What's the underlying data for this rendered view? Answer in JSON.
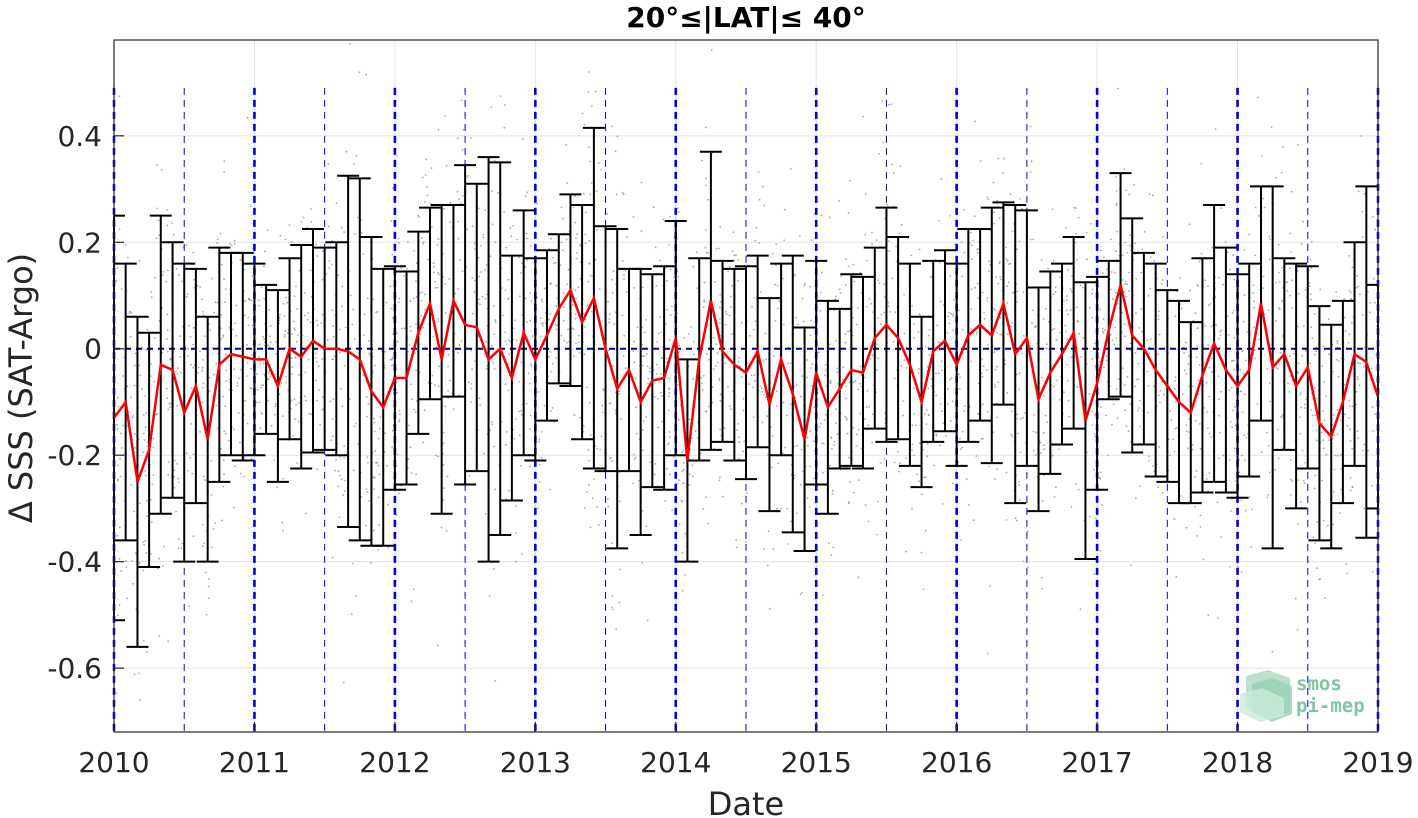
{
  "chart_data": {
    "type": "scatter",
    "title": "20°≤|LAT|≤ 40°",
    "xlabel": "Date",
    "ylabel": "Δ SSS (SAT-Argo)",
    "xlim": [
      2010,
      2019
    ],
    "ylim": [
      -0.72,
      0.58
    ],
    "xticks": [
      2010,
      2011,
      2012,
      2013,
      2014,
      2015,
      2016,
      2017,
      2018,
      2019
    ],
    "yticks": [
      -0.6,
      -0.4,
      -0.2,
      0,
      0.2,
      0.4
    ],
    "grid": true,
    "colors": {
      "mean_line": "#ff0000",
      "error_bars": "#000000",
      "scatter": "#8c8c8c",
      "vlines": "#0000dd",
      "zero_line": "#0000aa"
    },
    "series": [
      {
        "kind": "monthly_mean_with_std",
        "x": [
          2010.0,
          2010.083,
          2010.167,
          2010.25,
          2010.333,
          2010.417,
          2010.5,
          2010.583,
          2010.667,
          2010.75,
          2010.833,
          2010.917,
          2011.0,
          2011.083,
          2011.167,
          2011.25,
          2011.333,
          2011.417,
          2011.5,
          2011.583,
          2011.667,
          2011.75,
          2011.833,
          2011.917,
          2012.0,
          2012.083,
          2012.167,
          2012.25,
          2012.333,
          2012.417,
          2012.5,
          2012.583,
          2012.667,
          2012.75,
          2012.833,
          2012.917,
          2013.0,
          2013.083,
          2013.167,
          2013.25,
          2013.333,
          2013.417,
          2013.5,
          2013.583,
          2013.667,
          2013.75,
          2013.833,
          2013.917,
          2014.0,
          2014.083,
          2014.167,
          2014.25,
          2014.333,
          2014.417,
          2014.5,
          2014.583,
          2014.667,
          2014.75,
          2014.833,
          2014.917,
          2015.0,
          2015.083,
          2015.167,
          2015.25,
          2015.333,
          2015.417,
          2015.5,
          2015.583,
          2015.667,
          2015.75,
          2015.833,
          2015.917,
          2016.0,
          2016.083,
          2016.167,
          2016.25,
          2016.333,
          2016.417,
          2016.5,
          2016.583,
          2016.667,
          2016.75,
          2016.833,
          2016.917,
          2017.0,
          2017.083,
          2017.167,
          2017.25,
          2017.333,
          2017.417,
          2017.5,
          2017.583,
          2017.667,
          2017.75,
          2017.833,
          2017.917,
          2018.0,
          2018.083,
          2018.167,
          2018.25,
          2018.333,
          2018.417,
          2018.5,
          2018.583,
          2018.667,
          2018.75,
          2018.833,
          2018.917,
          2019.0
        ],
        "mean": [
          -0.13,
          -0.1,
          -0.25,
          -0.19,
          -0.03,
          -0.04,
          -0.12,
          -0.07,
          -0.17,
          -0.03,
          -0.01,
          -0.015,
          -0.02,
          -0.02,
          -0.07,
          0.0,
          -0.015,
          0.015,
          0.0,
          0.0,
          -0.005,
          -0.02,
          -0.08,
          -0.11,
          -0.055,
          -0.055,
          0.03,
          0.085,
          -0.02,
          0.09,
          0.045,
          0.04,
          -0.02,
          0.0,
          -0.055,
          0.03,
          -0.02,
          0.025,
          0.075,
          0.11,
          0.05,
          0.095,
          0.0,
          -0.075,
          -0.04,
          -0.1,
          -0.06,
          -0.055,
          0.02,
          -0.21,
          -0.02,
          0.09,
          -0.005,
          -0.03,
          -0.045,
          -0.005,
          -0.105,
          -0.02,
          -0.085,
          -0.17,
          -0.045,
          -0.11,
          -0.075,
          -0.04,
          -0.045,
          0.02,
          0.045,
          0.02,
          -0.03,
          -0.1,
          -0.005,
          0.015,
          -0.03,
          0.025,
          0.045,
          0.025,
          0.085,
          -0.01,
          0.02,
          -0.095,
          -0.045,
          -0.01,
          0.03,
          -0.135,
          -0.065,
          0.035,
          0.12,
          0.025,
          0.0,
          -0.04,
          -0.07,
          -0.1,
          -0.12,
          -0.05,
          0.01,
          -0.04,
          -0.07,
          -0.04,
          0.085,
          -0.035,
          -0.01,
          -0.07,
          -0.035,
          -0.14,
          -0.165,
          -0.1,
          -0.01,
          -0.025,
          -0.09
        ],
        "std": [
          0.38,
          0.26,
          0.31,
          0.22,
          0.28,
          0.24,
          0.28,
          0.22,
          0.23,
          0.22,
          0.19,
          0.195,
          0.18,
          0.14,
          0.18,
          0.17,
          0.21,
          0.21,
          0.19,
          0.2,
          0.33,
          0.34,
          0.29,
          0.26,
          0.21,
          0.2,
          0.19,
          0.18,
          0.29,
          0.18,
          0.3,
          0.27,
          0.38,
          0.35,
          0.23,
          0.23,
          0.19,
          0.16,
          0.14,
          0.18,
          0.22,
          0.32,
          0.23,
          0.3,
          0.19,
          0.25,
          0.2,
          0.21,
          0.22,
          0.19,
          0.19,
          0.28,
          0.17,
          0.18,
          0.2,
          0.18,
          0.2,
          0.18,
          0.26,
          0.21,
          0.21,
          0.2,
          0.15,
          0.18,
          0.18,
          0.17,
          0.22,
          0.19,
          0.19,
          0.16,
          0.17,
          0.17,
          0.19,
          0.2,
          0.18,
          0.24,
          0.19,
          0.28,
          0.24,
          0.21,
          0.19,
          0.17,
          0.18,
          0.26,
          0.2,
          0.13,
          0.21,
          0.22,
          0.18,
          0.2,
          0.18,
          0.19,
          0.17,
          0.22,
          0.26,
          0.23,
          0.21,
          0.2,
          0.22,
          0.34,
          0.18,
          0.23,
          0.19,
          0.22,
          0.21,
          0.19,
          0.21,
          0.33,
          0.21
        ]
      }
    ],
    "scatter_note_count": 3200
  },
  "watermark": {
    "line1": "smos",
    "line2": "pi-mep"
  }
}
